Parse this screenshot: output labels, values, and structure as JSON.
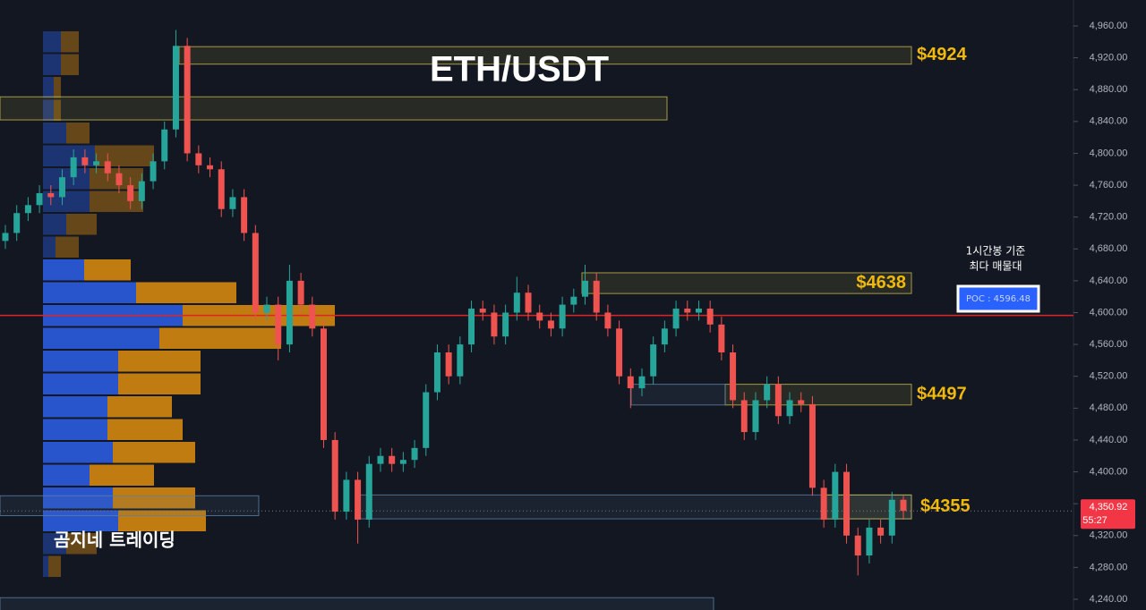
{
  "chart_data": {
    "type": "candlestick",
    "title": "ETH/USDT",
    "watermark": "곰지네 트레이딩",
    "annotation": [
      "1시간봉 기준",
      "최다 매물대"
    ],
    "up_color": "#26a69a",
    "down_color": "#ef5350",
    "open": [
      4690,
      4700,
      4725,
      4735,
      4750,
      4745,
      4770,
      4795,
      4785,
      4790,
      4775,
      4760,
      4740,
      4765,
      4790,
      4830,
      4935,
      4800,
      4785,
      4780,
      4730,
      4745,
      4700,
      4600,
      4610,
      4560,
      4640,
      4610,
      4580,
      4440,
      4350,
      4390,
      4340,
      4410,
      4420,
      4410,
      4415,
      4430,
      4500,
      4550,
      4520,
      4560,
      4605,
      4600,
      4570,
      4600,
      4625,
      4600,
      4590,
      4580,
      4610,
      4620,
      4640,
      4600,
      4580,
      4520,
      4505,
      4520,
      4560,
      4580,
      4605,
      4600,
      4605,
      4585,
      4550,
      4490,
      4450,
      4490,
      4510,
      4470,
      4490,
      4485,
      4380,
      4340,
      4400,
      4320,
      4295,
      4330,
      4320,
      4365
    ],
    "high": [
      4710,
      4735,
      4745,
      4760,
      4760,
      4780,
      4805,
      4805,
      4800,
      4800,
      4785,
      4770,
      4775,
      4800,
      4840,
      4955,
      4945,
      4810,
      4795,
      4790,
      4755,
      4755,
      4710,
      4620,
      4620,
      4660,
      4650,
      4620,
      4590,
      4450,
      4400,
      4400,
      4420,
      4430,
      4430,
      4425,
      4440,
      4510,
      4560,
      4560,
      4570,
      4615,
      4615,
      4610,
      4610,
      4645,
      4635,
      4610,
      4600,
      4620,
      4630,
      4660,
      4650,
      4610,
      4590,
      4530,
      4530,
      4570,
      4590,
      4615,
      4615,
      4615,
      4615,
      4595,
      4560,
      4500,
      4500,
      4520,
      4520,
      4500,
      4500,
      4495,
      4390,
      4410,
      4410,
      4330,
      4340,
      4340,
      4375,
      4370
    ],
    "low": [
      4680,
      4690,
      4715,
      4725,
      4735,
      4735,
      4760,
      4775,
      4775,
      4765,
      4750,
      4730,
      4730,
      4755,
      4780,
      4820,
      4790,
      4775,
      4770,
      4720,
      4720,
      4690,
      4590,
      4590,
      4540,
      4550,
      4600,
      4570,
      4430,
      4340,
      4340,
      4310,
      4330,
      4400,
      4400,
      4400,
      4405,
      4420,
      4490,
      4510,
      4510,
      4550,
      4590,
      4560,
      4560,
      4590,
      4590,
      4580,
      4570,
      4570,
      4600,
      4610,
      4590,
      4570,
      4510,
      4480,
      4495,
      4510,
      4550,
      4570,
      4590,
      4590,
      4575,
      4540,
      4480,
      4440,
      4440,
      4480,
      4460,
      4460,
      4475,
      4370,
      4330,
      4330,
      4310,
      4270,
      4285,
      4310,
      4310,
      4340
    ],
    "close": [
      4700,
      4725,
      4735,
      4750,
      4745,
      4770,
      4795,
      4785,
      4790,
      4775,
      4760,
      4740,
      4765,
      4790,
      4830,
      4935,
      4800,
      4785,
      4780,
      4730,
      4745,
      4700,
      4600,
      4610,
      4560,
      4640,
      4610,
      4580,
      4440,
      4350,
      4390,
      4340,
      4410,
      4420,
      4410,
      4415,
      4430,
      4500,
      4550,
      4520,
      4560,
      4605,
      4600,
      4570,
      4600,
      4625,
      4600,
      4590,
      4580,
      4610,
      4620,
      4640,
      4600,
      4580,
      4520,
      4505,
      4520,
      4560,
      4580,
      4605,
      4600,
      4605,
      4585,
      4550,
      4490,
      4450,
      4490,
      4510,
      4470,
      4490,
      4485,
      4380,
      4340,
      4400,
      4320,
      4295,
      4330,
      4320,
      4365,
      4351
    ],
    "ylim": [
      4240,
      4960
    ],
    "yticks": [
      {
        "value": 4960,
        "label": "4,960.00"
      },
      {
        "value": 4920,
        "label": "4,920.00"
      },
      {
        "value": 4880,
        "label": "4,880.00"
      },
      {
        "value": 4840,
        "label": "4,840.00"
      },
      {
        "value": 4800,
        "label": "4,800.00"
      },
      {
        "value": 4760,
        "label": "4,760.00"
      },
      {
        "value": 4720,
        "label": "4,720.00"
      },
      {
        "value": 4680,
        "label": "4,680.00"
      },
      {
        "value": 4640,
        "label": "4,640.00"
      },
      {
        "value": 4600,
        "label": "4,600.00"
      },
      {
        "value": 4560,
        "label": "4,560.00"
      },
      {
        "value": 4520,
        "label": "4,520.00"
      },
      {
        "value": 4480,
        "label": "4,480.00"
      },
      {
        "value": 4440,
        "label": "4,440.00"
      },
      {
        "value": 4400,
        "label": "4,400.00"
      },
      {
        "value": 4360,
        "label": "4,360.00"
      },
      {
        "value": 4320,
        "label": "4,320.00"
      },
      {
        "value": 4280,
        "label": "4,280.00"
      },
      {
        "value": 4240,
        "label": "4,240.00"
      }
    ],
    "volume_profile": {
      "buy_color": "#2a58d6",
      "sell_color": "#c98210",
      "buy": [
        20,
        20,
        12,
        12,
        26,
        58,
        52,
        52,
        26,
        14,
        46,
        104,
        156,
        130,
        84,
        84,
        72,
        72,
        78,
        52,
        78,
        84,
        26,
        6
      ],
      "sell": [
        20,
        20,
        8,
        8,
        26,
        66,
        60,
        60,
        34,
        26,
        52,
        112,
        170,
        136,
        92,
        92,
        72,
        84,
        92,
        72,
        92,
        98,
        34,
        14
      ]
    },
    "poc": {
      "value": 4596.48,
      "value_label": "POC : 4596.48",
      "color": "#e02424"
    },
    "last_price": {
      "value": 4350.92,
      "value_label": "4,350.92",
      "timer": "55:27",
      "color": "#f23645"
    },
    "zones": [
      {
        "label": "$4924",
        "top": 4934,
        "bottom": 4912,
        "color": "#c8b84a"
      },
      {
        "top": 4871,
        "bottom": 4842,
        "color": "#c8b84a"
      },
      {
        "label": "$4638",
        "top": 4650,
        "bottom": 4624,
        "color": "#c8b84a"
      },
      {
        "label": "$4497",
        "top": 4510,
        "bottom": 4484,
        "color": "#c8b84a"
      },
      {
        "top": 4510,
        "bottom": 4484,
        "color": "#5b7fa6"
      },
      {
        "label": "$4355",
        "top": 4371,
        "bottom": 4341,
        "color": "#5b7fa6"
      },
      {
        "top": 4371,
        "bottom": 4341,
        "color": "#c8b84a"
      },
      {
        "top": 4370,
        "bottom": 4345,
        "color": "#5b7fa6"
      },
      {
        "top": 4242,
        "bottom": 4220,
        "color": "#5b7fa6"
      }
    ]
  }
}
